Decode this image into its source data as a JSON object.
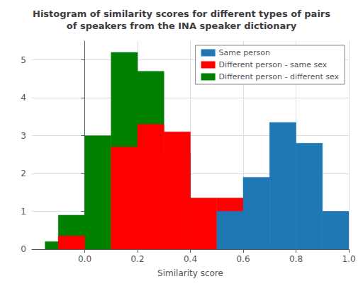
{
  "chart_data": {
    "type": "histogram",
    "title": "Histogram of similarity scores for different types of pairs\nof speakers from the INA speaker dictionary",
    "xlabel": "Similarity score",
    "bin_width": 0.1,
    "series": [
      {
        "name": "Same person",
        "color": "#1f77b4",
        "x": [
          0.5,
          0.6,
          0.7,
          0.8,
          0.9
        ],
        "values": [
          1.0,
          1.9,
          3.35,
          2.8,
          1.0
        ]
      },
      {
        "name": "Different person - same sex",
        "color": "#ff0000",
        "x": [
          -0.1,
          0.1,
          0.2,
          0.3,
          0.4,
          0.5,
          0.6
        ],
        "values": [
          0.35,
          2.7,
          3.3,
          3.1,
          1.35,
          1.35,
          0.1
        ]
      },
      {
        "name": "Different person - different sex",
        "color": "#008000",
        "x": [
          -0.15,
          -0.1,
          0.0,
          0.1,
          0.2,
          0.3,
          0.4
        ],
        "values": [
          0.2,
          0.9,
          3.0,
          5.2,
          4.7,
          2.55,
          0.1
        ]
      }
    ],
    "xlim": [
      -0.2,
      1.0
    ],
    "xticks": [
      {
        "value": 0,
        "label": "0.0"
      },
      0.2,
      0.4,
      0.6,
      0.8,
      {
        "value": 1.0,
        "label": "1.0"
      }
    ],
    "ylim": [
      0,
      5.5
    ],
    "yticks": [
      0,
      1,
      2,
      3,
      4,
      5
    ],
    "grid": true,
    "legend": "upper right"
  }
}
